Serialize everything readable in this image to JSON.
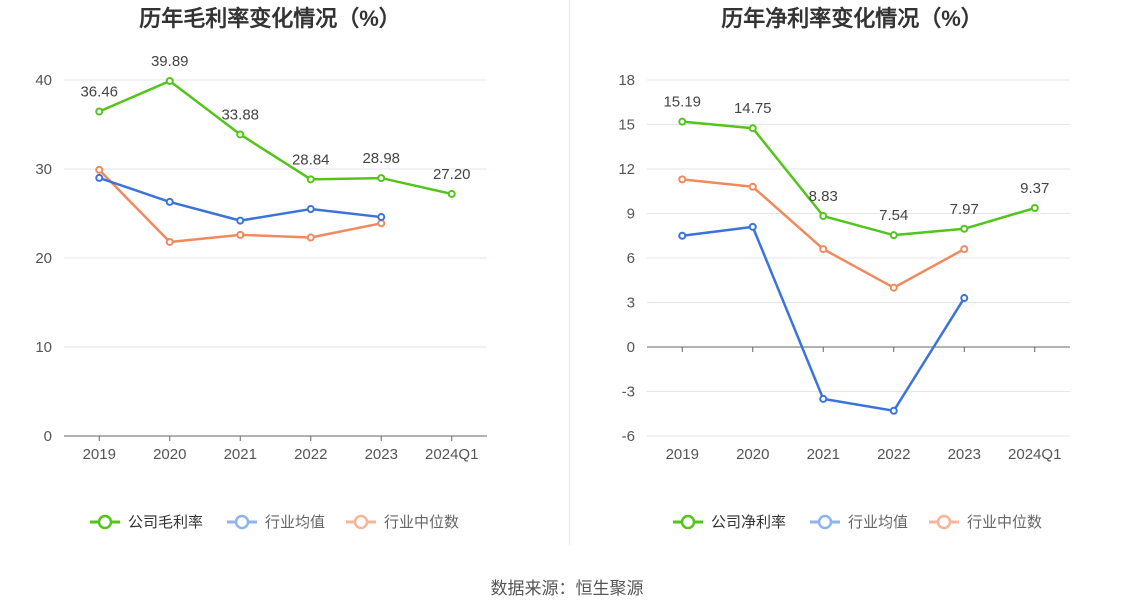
{
  "charts": [
    {
      "title": "历年毛利率变化情况（%）",
      "categories": [
        "2019",
        "2020",
        "2021",
        "2022",
        "2023",
        "2024Q1"
      ],
      "y_ticks": [
        "40",
        "30",
        "20",
        "10",
        "0"
      ],
      "legend": [
        "公司毛利率",
        "行业均值",
        "行业中位数"
      ]
    },
    {
      "title": "历年净利率变化情况（%）",
      "categories": [
        "2019",
        "2020",
        "2021",
        "2022",
        "2023",
        "2024Q1"
      ],
      "y_ticks": [
        "18",
        "15",
        "12",
        "9",
        "6",
        "3",
        "0",
        "-3",
        "-6"
      ],
      "legend": [
        "公司净利率",
        "行业均值",
        "行业中位数"
      ]
    }
  ],
  "source_text": "数据来源：恒生聚源",
  "colors": {
    "company": "#52c41a",
    "industry_avg": "#3a73d9",
    "industry_median": "#f08a5d"
  },
  "chart_data": [
    {
      "type": "line",
      "title": "历年毛利率变化情况（%）",
      "categories": [
        "2019",
        "2020",
        "2021",
        "2022",
        "2023",
        "2024Q1"
      ],
      "ylim": [
        0,
        40
      ],
      "series": [
        {
          "name": "公司毛利率",
          "values": [
            36.46,
            39.89,
            33.88,
            28.84,
            28.98,
            27.2
          ],
          "labels": [
            "36.46",
            "39.89",
            "33.88",
            "28.84",
            "28.98",
            "27.20"
          ]
        },
        {
          "name": "行业均值",
          "values": [
            29.0,
            26.3,
            24.2,
            25.5,
            24.6,
            null
          ]
        },
        {
          "name": "行业中位数",
          "values": [
            29.9,
            21.8,
            22.6,
            22.3,
            23.9,
            null
          ]
        }
      ]
    },
    {
      "type": "line",
      "title": "历年净利率变化情况（%）",
      "categories": [
        "2019",
        "2020",
        "2021",
        "2022",
        "2023",
        "2024Q1"
      ],
      "ylim": [
        -6,
        18
      ],
      "series": [
        {
          "name": "公司净利率",
          "values": [
            15.19,
            14.75,
            8.83,
            7.54,
            7.97,
            9.37
          ],
          "labels": [
            "15.19",
            "14.75",
            "8.83",
            "7.54",
            "7.97",
            "9.37"
          ]
        },
        {
          "name": "行业均值",
          "values": [
            7.5,
            8.1,
            -3.5,
            -4.3,
            3.3,
            null
          ]
        },
        {
          "name": "行业中位数",
          "values": [
            11.3,
            10.8,
            6.6,
            4.0,
            6.6,
            null
          ]
        }
      ]
    }
  ]
}
